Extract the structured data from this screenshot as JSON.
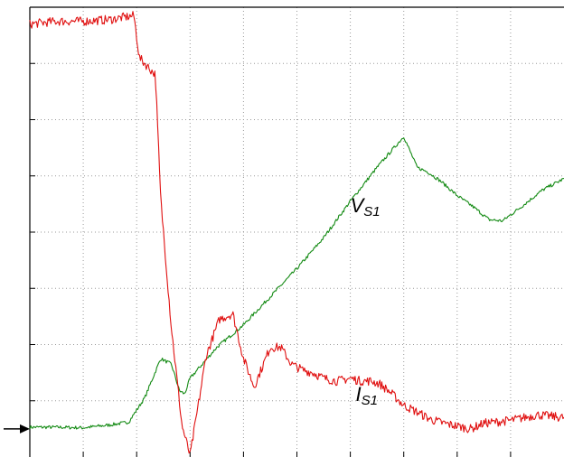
{
  "chart_data": {
    "type": "line",
    "title": "",
    "xlabel": "",
    "ylabel": "",
    "xlim": [
      0,
      10
    ],
    "ylim": [
      0,
      8
    ],
    "grid": true,
    "grid_divisions": {
      "x": 10,
      "y": 8
    },
    "ground_marker_y": 0.5,
    "series": [
      {
        "name": "V",
        "name_sub": "S1",
        "color": "#138a13",
        "x": [
          0,
          0.5,
          1.0,
          1.5,
          1.85,
          2.15,
          2.45,
          2.65,
          2.8,
          2.9,
          3.0,
          3.2,
          3.5,
          4.0,
          4.5,
          5.0,
          5.5,
          6.0,
          6.5,
          7.0,
          7.25,
          7.45,
          7.7,
          8.0,
          8.3,
          8.6,
          8.85,
          9.2,
          9.6,
          10.0
        ],
        "y": [
          0.53,
          0.53,
          0.52,
          0.57,
          0.62,
          1.05,
          1.75,
          1.65,
          1.18,
          1.12,
          1.4,
          1.62,
          1.95,
          2.35,
          2.85,
          3.35,
          3.9,
          4.55,
          5.15,
          5.7,
          5.15,
          5.07,
          4.9,
          4.65,
          4.45,
          4.22,
          4.2,
          4.45,
          4.75,
          4.95
        ],
        "noise": 0.03
      },
      {
        "name": "I",
        "name_sub": "S1",
        "color": "#e01010",
        "x": [
          0,
          0.5,
          1.0,
          1.5,
          1.95,
          2.05,
          2.35,
          2.45,
          2.65,
          2.85,
          3.0,
          3.15,
          3.3,
          3.55,
          3.8,
          4.0,
          4.2,
          4.35,
          4.5,
          4.7,
          4.9,
          5.1,
          5.3,
          5.5,
          5.75,
          6.0,
          6.2,
          6.4,
          6.55,
          6.75,
          7.0,
          7.25,
          7.5,
          7.75,
          8.0,
          8.25,
          8.5,
          9.0,
          9.5,
          10.0
        ],
        "y": [
          7.7,
          7.75,
          7.75,
          7.78,
          7.85,
          7.1,
          6.8,
          4.6,
          2.3,
          0.55,
          0.03,
          0.9,
          1.8,
          2.45,
          2.55,
          1.75,
          1.25,
          1.6,
          1.95,
          1.95,
          1.65,
          1.55,
          1.5,
          1.4,
          1.35,
          1.4,
          1.35,
          1.35,
          1.3,
          1.15,
          0.92,
          0.8,
          0.67,
          0.6,
          0.55,
          0.5,
          0.6,
          0.65,
          0.75,
          0.7
        ],
        "noise": 0.08
      }
    ],
    "annotations": [
      {
        "series": "V",
        "text": "V",
        "sub": "S1",
        "x": 6.0,
        "y": 4.35
      },
      {
        "series": "I",
        "text": "I",
        "sub": "S1",
        "x": 6.1,
        "y": 1.0
      }
    ]
  }
}
